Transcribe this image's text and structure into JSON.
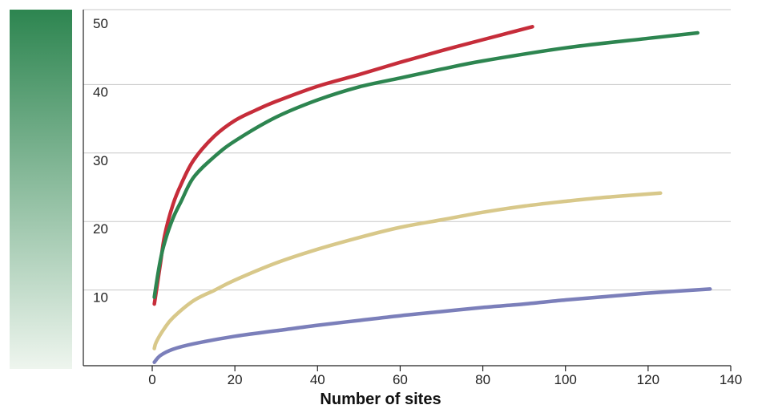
{
  "chart_data": {
    "type": "line",
    "title": "",
    "xlabel": "Number of sites",
    "ylabel": "",
    "xlim": [
      -13,
      140
    ],
    "ylim": [
      0,
      50
    ],
    "x_ticks": [
      0,
      20,
      40,
      60,
      80,
      100,
      120,
      140
    ],
    "y_ticks": [
      10,
      20,
      30,
      40,
      50
    ],
    "grid": "horizontal",
    "legend": "none",
    "series": [
      {
        "color": "#c62d3a",
        "points": [
          [
            0.5,
            9
          ],
          [
            1,
            11
          ],
          [
            2,
            15
          ],
          [
            3,
            19
          ],
          [
            5,
            23.5
          ],
          [
            7,
            26.5
          ],
          [
            10,
            30
          ],
          [
            15,
            33.5
          ],
          [
            20,
            35.8
          ],
          [
            25,
            37.3
          ],
          [
            30,
            38.6
          ],
          [
            40,
            40.8
          ],
          [
            50,
            42.5
          ],
          [
            60,
            44.3
          ],
          [
            70,
            46
          ],
          [
            80,
            47.6
          ],
          [
            92,
            49.5
          ]
        ]
      },
      {
        "color": "#2d8550",
        "points": [
          [
            0.5,
            10
          ],
          [
            1,
            12
          ],
          [
            2,
            15.5
          ],
          [
            3,
            18
          ],
          [
            5,
            21.5
          ],
          [
            7,
            24
          ],
          [
            10,
            27.5
          ],
          [
            15,
            30.5
          ],
          [
            20,
            32.8
          ],
          [
            30,
            36.3
          ],
          [
            40,
            38.8
          ],
          [
            50,
            40.7
          ],
          [
            60,
            42
          ],
          [
            70,
            43.3
          ],
          [
            80,
            44.5
          ],
          [
            100,
            46.4
          ],
          [
            120,
            47.8
          ],
          [
            132,
            48.6
          ]
        ]
      },
      {
        "color": "#d8c88a",
        "points": [
          [
            0.5,
            2.5
          ],
          [
            1,
            3.5
          ],
          [
            3,
            5.5
          ],
          [
            5,
            7
          ],
          [
            10,
            9.5
          ],
          [
            15,
            11
          ],
          [
            20,
            12.5
          ],
          [
            30,
            15
          ],
          [
            40,
            17
          ],
          [
            50,
            18.7
          ],
          [
            60,
            20.2
          ],
          [
            70,
            21.3
          ],
          [
            80,
            22.4
          ],
          [
            90,
            23.3
          ],
          [
            100,
            24
          ],
          [
            110,
            24.6
          ],
          [
            123,
            25.2
          ]
        ]
      },
      {
        "color": "#7b7fba",
        "points": [
          [
            0.5,
            0.5
          ],
          [
            2,
            1.5
          ],
          [
            5,
            2.4
          ],
          [
            10,
            3.2
          ],
          [
            20,
            4.3
          ],
          [
            30,
            5.1
          ],
          [
            40,
            5.9
          ],
          [
            50,
            6.6
          ],
          [
            60,
            7.3
          ],
          [
            70,
            7.9
          ],
          [
            80,
            8.5
          ],
          [
            90,
            9
          ],
          [
            100,
            9.6
          ],
          [
            110,
            10.1
          ],
          [
            120,
            10.6
          ],
          [
            135,
            11.2
          ]
        ]
      }
    ]
  }
}
